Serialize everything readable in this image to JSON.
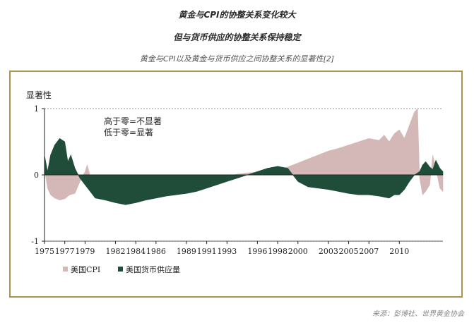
{
  "header": {
    "title_line1": "黄金与CPI的协整关系变化较大",
    "title_line2": "但与货币供应的协整关系保持稳定",
    "subtitle": "黄金与CPI以及黄金与货币供应之间协整关系的显著性[2]"
  },
  "source": "来源：彭博社、世界黄金协会",
  "colors": {
    "cpi": "#d4b8b8",
    "money_supply": "#1f4d3a",
    "frame": "#a8944a"
  },
  "chart_data": {
    "type": "area",
    "ylabel": "显著性",
    "ylim": [
      -1,
      1
    ],
    "yticks": [
      "1",
      "0",
      "-1"
    ],
    "xlim": [
      1975,
      2014.3
    ],
    "xtick_labels": [
      "1975",
      "1977",
      "1979",
      "1982",
      "1984",
      "1986",
      "1989",
      "1991",
      "1993",
      "1996",
      "1998",
      "2000",
      "2003",
      "2005",
      "2007",
      "2010"
    ],
    "xtick_values": [
      1975,
      1977,
      1979,
      1982,
      1984,
      1986,
      1989,
      1991,
      1993,
      1996,
      1998,
      2000,
      2003,
      2005,
      2007,
      2010
    ],
    "annotations": [
      "高于零=不显著",
      "低于零=显著"
    ],
    "legend": {
      "placement": "bottom-left",
      "entries": [
        "美国CPI",
        "美国货币供应量"
      ]
    },
    "series": [
      {
        "name": "美国CPI",
        "color": "#d4b8b8",
        "x": [
          1975,
          1975.3,
          1975.6,
          1976,
          1976.5,
          1977,
          1977.5,
          1978,
          1978.5,
          1979,
          1979.2,
          1979.4,
          1979.6,
          1980,
          1980.5,
          1981,
          1981.5,
          1982,
          1982.5,
          1983,
          1984,
          1985,
          1986,
          1987,
          1988,
          1989,
          1990,
          1990.5,
          1991,
          1991.5,
          1992,
          1993,
          1994,
          1995,
          1996,
          1997,
          1998,
          1999,
          2000,
          2001,
          2002,
          2003,
          2004,
          2005,
          2006,
          2007,
          2008,
          2008.5,
          2009,
          2009.5,
          2010,
          2010.5,
          2011,
          2011.5,
          2011.8,
          2012,
          2012.3,
          2012.6,
          2013,
          2013.3,
          2013.6,
          2014,
          2014.3
        ],
        "y": [
          0.1,
          -0.2,
          -0.3,
          -0.35,
          -0.38,
          -0.36,
          -0.3,
          -0.28,
          -0.1,
          0.05,
          0.15,
          0.05,
          -0.1,
          -0.3,
          -0.35,
          -0.32,
          -0.3,
          -0.38,
          -0.36,
          -0.32,
          -0.3,
          -0.28,
          -0.26,
          -0.24,
          -0.22,
          -0.2,
          -0.2,
          -0.18,
          -0.12,
          -0.08,
          -0.05,
          -0.02,
          0.01,
          0.03,
          0.04,
          0.06,
          0.08,
          0.12,
          0.18,
          0.24,
          0.3,
          0.36,
          0.4,
          0.45,
          0.5,
          0.55,
          0.52,
          0.6,
          0.5,
          0.62,
          0.68,
          0.55,
          0.75,
          0.95,
          1.0,
          -0.05,
          -0.3,
          -0.25,
          -0.15,
          0.3,
          0.1,
          -0.2,
          -0.25
        ]
      },
      {
        "name": "美国货币供应量",
        "color": "#1f4d3a",
        "x": [
          1975,
          1975.3,
          1975.6,
          1976,
          1976.5,
          1977,
          1977.3,
          1977.6,
          1978,
          1978.5,
          1979,
          1979.5,
          1980,
          1981,
          1982,
          1983,
          1984,
          1985,
          1986,
          1987,
          1988,
          1989,
          1990,
          1991,
          1992,
          1993,
          1994,
          1995,
          1996,
          1997,
          1998,
          1999,
          2000,
          2001,
          2002,
          2003,
          2004,
          2005,
          2006,
          2007,
          2008,
          2009,
          2009.5,
          2010,
          2010.5,
          2011,
          2011.5,
          2012,
          2012.3,
          2012.6,
          2013,
          2013.3,
          2013.6,
          2014,
          2014.3
        ],
        "y": [
          0.3,
          0.05,
          0.3,
          0.45,
          0.55,
          0.5,
          0.2,
          0.3,
          0.1,
          -0.05,
          -0.15,
          -0.25,
          -0.35,
          -0.38,
          -0.42,
          -0.45,
          -0.42,
          -0.38,
          -0.35,
          -0.32,
          -0.3,
          -0.28,
          -0.25,
          -0.2,
          -0.15,
          -0.1,
          -0.05,
          0.0,
          0.05,
          0.1,
          0.13,
          0.1,
          -0.1,
          -0.18,
          -0.2,
          -0.22,
          -0.25,
          -0.28,
          -0.3,
          -0.3,
          -0.32,
          -0.35,
          -0.3,
          -0.3,
          -0.22,
          -0.1,
          0.0,
          0.05,
          0.15,
          0.2,
          0.12,
          0.08,
          0.22,
          0.1,
          0.05
        ]
      }
    ]
  }
}
